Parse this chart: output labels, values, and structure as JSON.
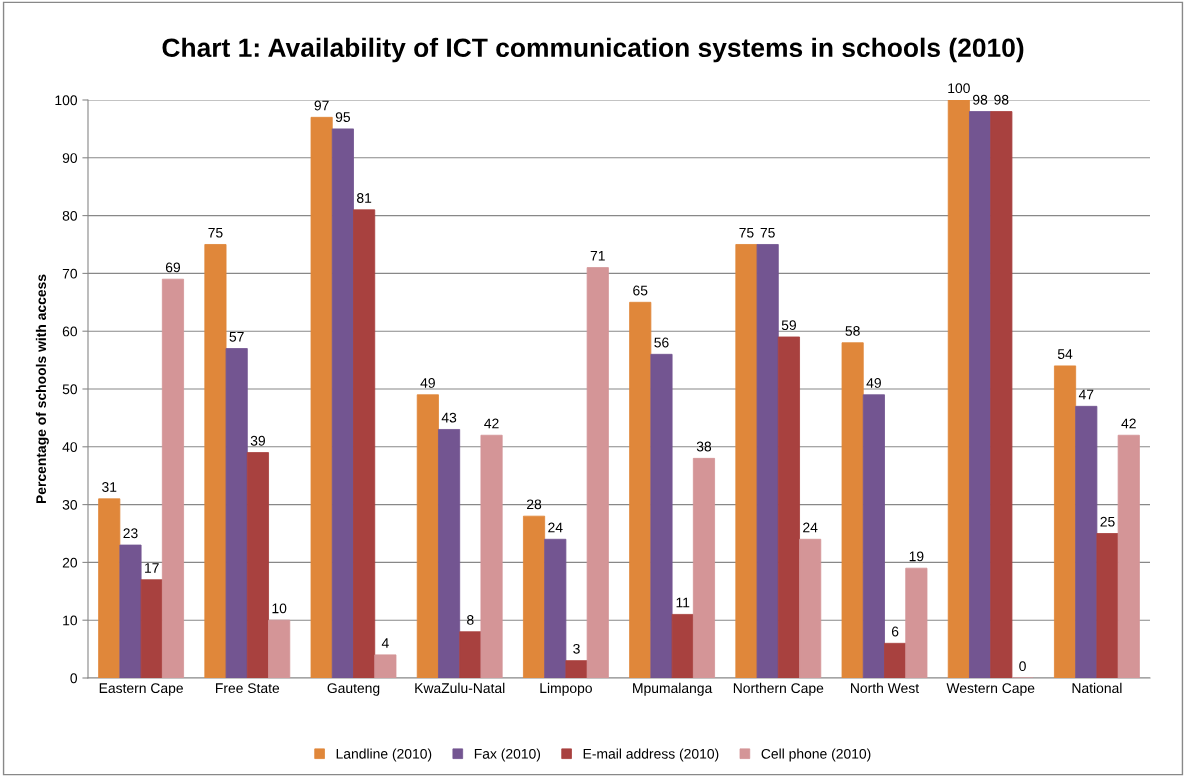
{
  "chart_data": {
    "type": "bar",
    "title": "Chart 1: Availability of ICT communication systems in schools (2010)",
    "ylabel": "Percentage of schools with access",
    "categories": [
      "Eastern Cape",
      "Free State",
      "Gauteng",
      "KwaZulu-Natal",
      "Limpopo",
      "Mpumalanga",
      "Northern Cape",
      "North West",
      "Western Cape",
      "National"
    ],
    "series": [
      {
        "name": "Landline (2010)",
        "color": "#e0873a",
        "values": [
          31,
          75,
          97,
          49,
          28,
          65,
          75,
          58,
          100,
          54
        ]
      },
      {
        "name": "Fax (2010)",
        "color": "#735591",
        "values": [
          23,
          57,
          95,
          43,
          24,
          56,
          75,
          49,
          98,
          47
        ]
      },
      {
        "name": "E-mail address (2010)",
        "color": "#a8413f",
        "values": [
          17,
          39,
          81,
          8,
          3,
          11,
          59,
          6,
          98,
          25
        ]
      },
      {
        "name": "Cell phone (2010)",
        "color": "#d49597",
        "values": [
          69,
          10,
          4,
          42,
          71,
          38,
          24,
          19,
          0,
          42
        ]
      }
    ],
    "ylim": [
      0,
      100
    ],
    "yticks": [
      0,
      10,
      20,
      30,
      40,
      50,
      60,
      70,
      80,
      90,
      100
    ],
    "grid": "y",
    "legend": "bottom",
    "data_labels": true
  }
}
